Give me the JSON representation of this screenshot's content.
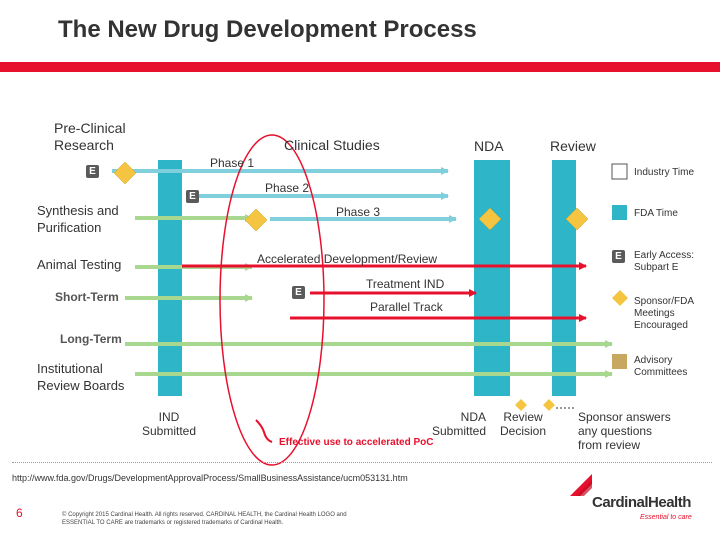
{
  "title": "The New Drug Development Process",
  "columns": {
    "preclinical": "Pre-Clinical\nResearch",
    "clinical": "Clinical Studies",
    "nda": "NDA",
    "review": "Review"
  },
  "rows": {
    "synthesis": "Synthesis and\nPurification",
    "animal": "Animal Testing",
    "short_term": "Short-Term",
    "long_term": "Long-Term",
    "irb": "Institutional\nReview Boards"
  },
  "arrows": {
    "phase1": "Phase 1",
    "phase2": "Phase 2",
    "phase3": "Phase 3",
    "accelerated": "Accelerated Development/Review",
    "treatment_ind": "Treatment IND",
    "parallel_track": "Parallel Track"
  },
  "e_marker": "E",
  "milestones": {
    "ind": "IND\nSubmitted",
    "nda": "NDA\nSubmitted",
    "review_decision": "Review\nDecision",
    "sponsor": "Sponsor answers\nany questions\nfrom review",
    "effective": "Effective use to accelerated PoC"
  },
  "legend": [
    {
      "label": "Industry Time",
      "kind": "box",
      "color": "#ffffff"
    },
    {
      "label": "FDA Time",
      "kind": "box",
      "color": "#2eb6c8"
    },
    {
      "label": "Early Access:\nSubpart E",
      "kind": "e"
    },
    {
      "label": "Sponsor/FDA\nMeetings\nEncouraged",
      "kind": "diamond",
      "color": "#f5c542"
    },
    {
      "label": "Advisory\nCommittees",
      "kind": "box",
      "color": "#c8a860"
    }
  ],
  "footer": {
    "url": "http://www.fda.gov/Drugs/DevelopmentApprovalProcess/SmallBusinessAssistance/ucm053131.htm",
    "page": "6",
    "copyright": "© Copyright 2015 Cardinal Health. All rights reserved. CARDINAL HEALTH, the Cardinal Health LOGO and\nESSENTIAL TO CARE are trademarks or registered trademarks of Cardinal Health.",
    "logo": "CardinalHealth",
    "tagline": "Essential to care"
  },
  "colors": {
    "brand_red": "#e8112d",
    "teal_arrow": "#7fd0dc",
    "green_arrow": "#a8d890",
    "fda_bar": "#2eb6c8",
    "diamond": "#f5c542"
  }
}
